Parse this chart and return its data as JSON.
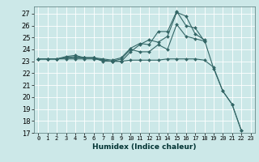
{
  "title": "",
  "xlabel": "Humidex (Indice chaleur)",
  "ylabel": "",
  "bg_color": "#cce8e8",
  "grid_color": "#b0d0d0",
  "line_color": "#336666",
  "xlim": [
    -0.5,
    23.5
  ],
  "ylim": [
    17,
    27.6
  ],
  "yticks": [
    17,
    18,
    19,
    20,
    21,
    22,
    23,
    24,
    25,
    26,
    27
  ],
  "xticks": [
    0,
    1,
    2,
    3,
    4,
    5,
    6,
    7,
    8,
    9,
    10,
    11,
    12,
    13,
    14,
    15,
    16,
    17,
    18,
    19,
    20,
    21,
    22,
    23
  ],
  "series": [
    {
      "x": [
        0,
        1,
        2,
        3,
        4,
        5,
        6,
        7,
        8,
        9,
        10,
        11,
        12,
        13,
        14,
        15,
        16,
        17,
        18,
        19,
        20,
        21,
        22
      ],
      "y": [
        23.2,
        23.2,
        23.2,
        23.3,
        23.4,
        23.3,
        23.3,
        23.1,
        23.0,
        23.0,
        23.8,
        24.4,
        24.8,
        24.6,
        25.1,
        27.1,
        26.8,
        25.3,
        24.8,
        22.4,
        20.5,
        19.4,
        17.2
      ]
    },
    {
      "x": [
        0,
        1,
        2,
        3,
        4,
        5,
        6,
        7,
        8,
        9,
        10,
        11,
        12,
        13,
        14,
        15,
        16,
        17,
        18
      ],
      "y": [
        23.2,
        23.2,
        23.2,
        23.4,
        23.5,
        23.3,
        23.3,
        23.2,
        23.1,
        23.3,
        24.1,
        24.5,
        24.4,
        25.5,
        25.5,
        27.2,
        26.0,
        25.8,
        24.7
      ]
    },
    {
      "x": [
        0,
        1,
        2,
        3,
        4,
        5,
        6,
        7,
        8,
        9,
        10,
        11,
        12,
        13,
        14,
        15,
        16,
        17,
        18
      ],
      "y": [
        23.2,
        23.2,
        23.2,
        23.3,
        23.3,
        23.3,
        23.3,
        23.0,
        23.0,
        23.2,
        24.0,
        23.8,
        23.8,
        24.4,
        24.0,
        26.1,
        25.1,
        24.9,
        24.7
      ]
    },
    {
      "x": [
        0,
        1,
        2,
        3,
        4,
        5,
        6,
        7,
        8,
        9,
        10,
        11,
        12,
        13,
        14,
        15,
        16,
        17,
        18,
        19,
        20,
        21,
        22
      ],
      "y": [
        23.2,
        23.2,
        23.2,
        23.2,
        23.2,
        23.2,
        23.2,
        23.1,
        23.0,
        23.0,
        23.1,
        23.1,
        23.1,
        23.1,
        23.2,
        23.2,
        23.2,
        23.2,
        23.1,
        22.5,
        20.5,
        19.4,
        17.2
      ]
    }
  ]
}
